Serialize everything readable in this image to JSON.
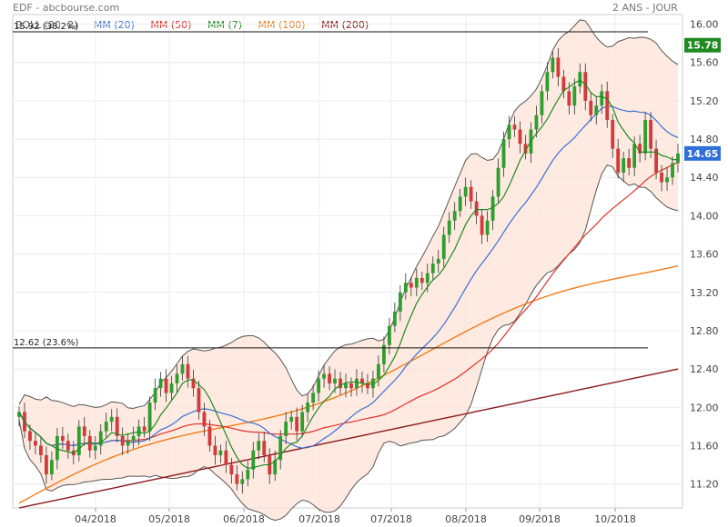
{
  "header": {
    "title": "EDF - abcbourse.com",
    "period": "2 ANS - JOUR"
  },
  "legend": [
    {
      "label": "BOLL (20, 2)",
      "color": "#555555"
    },
    {
      "label": "MM (20)",
      "color": "#3b6fd6"
    },
    {
      "label": "MM (50)",
      "color": "#e0302a"
    },
    {
      "label": "MM (7)",
      "color": "#1f8a1f"
    },
    {
      "label": "MM (100)",
      "color": "#f07d1a"
    },
    {
      "label": "MM (200)",
      "color": "#8b1a1a"
    }
  ],
  "chart_data": {
    "type": "candlestick",
    "ylim": [
      10.95,
      16.1
    ],
    "y_ticks": [
      "16.00",
      "15.60",
      "15.20",
      "14.80",
      "14.40",
      "14.00",
      "13.60",
      "13.20",
      "12.80",
      "12.40",
      "12.00",
      "11.60",
      "11.20"
    ],
    "x_labels": [
      "04/2018",
      "05/2018",
      "06/2018",
      "07/2018",
      "07/2018",
      "08/2018",
      "09/2018",
      "10/2018"
    ],
    "levels": [
      {
        "label": "15.92",
        "pct": "(38.2%)",
        "value": 15.92
      },
      {
        "label": "12.62",
        "pct": "(23.6%)",
        "value": 12.62
      }
    ],
    "last_close": {
      "label": "14.65",
      "value": 14.65,
      "color": "#2e6fd8"
    },
    "boll_upper_tag": {
      "label": "15.78",
      "value": 15.78,
      "color": "#1f8a1f"
    },
    "closes": [
      11.95,
      11.75,
      11.65,
      11.6,
      11.5,
      11.3,
      11.45,
      11.7,
      11.65,
      11.55,
      11.5,
      11.8,
      11.7,
      11.55,
      11.6,
      11.75,
      11.85,
      11.9,
      11.7,
      11.6,
      11.65,
      11.7,
      11.8,
      11.75,
      12.05,
      12.2,
      12.3,
      12.15,
      12.25,
      12.35,
      12.45,
      12.3,
      12.2,
      11.95,
      11.8,
      11.6,
      11.5,
      11.55,
      11.4,
      11.3,
      11.2,
      11.25,
      11.35,
      11.55,
      11.65,
      11.5,
      11.3,
      11.45,
      11.7,
      11.85,
      11.9,
      11.75,
      11.95,
      12.05,
      12.15,
      12.3,
      12.35,
      12.25,
      12.3,
      12.2,
      12.25,
      12.2,
      12.3,
      12.25,
      12.2,
      12.3,
      12.45,
      12.65,
      12.85,
      13.0,
      13.2,
      13.3,
      13.25,
      13.35,
      13.3,
      13.4,
      13.5,
      13.55,
      13.8,
      13.95,
      14.05,
      14.2,
      14.3,
      14.15,
      14.0,
      13.8,
      13.95,
      14.2,
      14.5,
      14.8,
      14.95,
      14.9,
      14.75,
      14.65,
      14.9,
      15.05,
      15.3,
      15.5,
      15.65,
      15.45,
      15.3,
      15.15,
      15.35,
      15.5,
      15.2,
      15.05,
      15.15,
      15.3,
      15.0,
      14.7,
      14.45,
      14.6,
      14.5,
      14.75,
      14.65,
      15.0,
      14.7,
      14.45,
      14.35,
      14.4,
      14.55,
      14.65
    ]
  }
}
